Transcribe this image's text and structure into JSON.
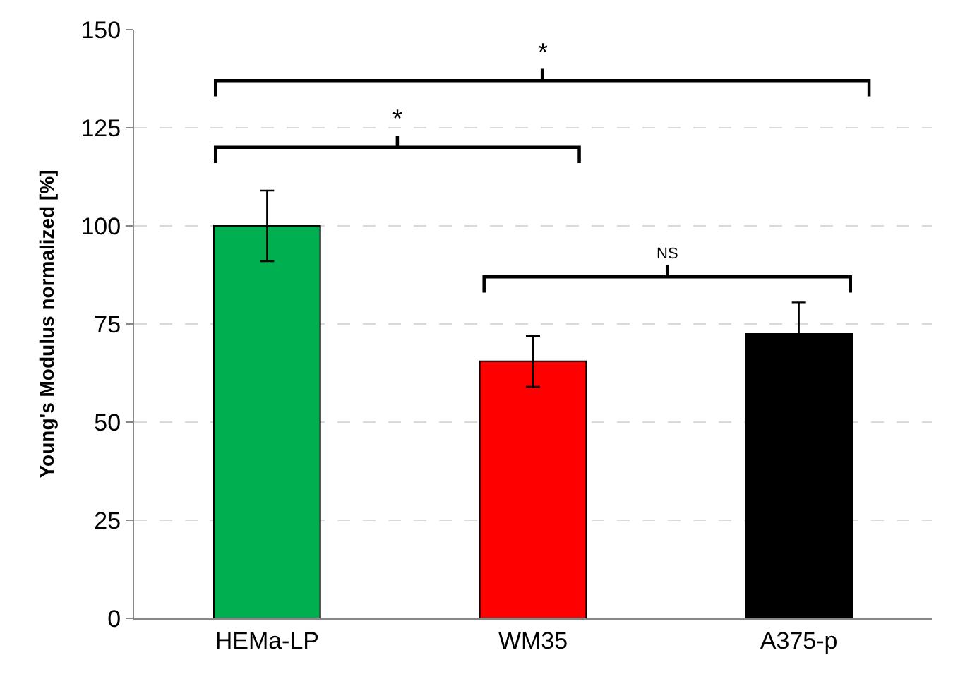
{
  "chart_data": {
    "type": "bar",
    "ylabel": "Young's Modulus normalized [%]",
    "categories": [
      "HEMa-LP",
      "WM35",
      "A375-p"
    ],
    "values": [
      100,
      65.5,
      72.5
    ],
    "colors": [
      "#00b050",
      "#ff0000",
      "#000000"
    ],
    "errors": [
      9,
      6.5,
      8
    ],
    "ylim": [
      0,
      150
    ],
    "yticks": [
      0,
      25,
      50,
      75,
      100,
      125,
      150
    ],
    "grid": "y",
    "annotations": [
      "*",
      "*",
      "NS"
    ]
  }
}
